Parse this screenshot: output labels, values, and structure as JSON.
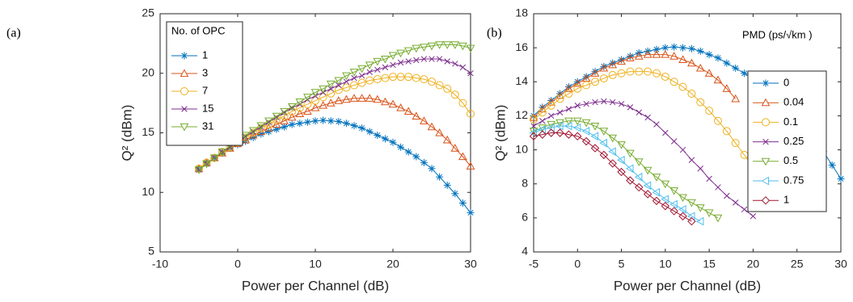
{
  "chart_data": [
    {
      "type": "line",
      "panel_label": "(a)",
      "xlabel": "Power per Channel (dB)",
      "ylabel": "Q² (dBm)",
      "legend_title": "No. of OPC",
      "xlim": [
        -10,
        30
      ],
      "ylim": [
        5,
        25
      ],
      "xticks": [
        -10,
        0,
        10,
        20,
        30
      ],
      "yticks": [
        5,
        10,
        15,
        20,
        25
      ],
      "series": [
        {
          "name": "1",
          "color": "#0072bd",
          "marker": "asterisk",
          "x": [
            -5,
            -4,
            -3,
            -2,
            -1,
            0,
            1,
            2,
            3,
            4,
            5,
            6,
            7,
            8,
            9,
            10,
            11,
            12,
            13,
            14,
            15,
            16,
            17,
            18,
            19,
            20,
            21,
            22,
            23,
            24,
            25,
            26,
            27,
            28,
            29,
            30
          ],
          "values": [
            12.0,
            12.5,
            12.9,
            13.3,
            13.7,
            14.0,
            14.3,
            14.6,
            14.9,
            15.1,
            15.3,
            15.5,
            15.7,
            15.8,
            15.9,
            16.0,
            16.05,
            16.0,
            15.95,
            15.8,
            15.6,
            15.4,
            15.1,
            14.8,
            14.5,
            14.2,
            13.8,
            13.4,
            13.0,
            12.5,
            12.0,
            11.3,
            10.6,
            9.9,
            9.1,
            8.3
          ]
        },
        {
          "name": "3",
          "color": "#d95319",
          "marker": "triangle",
          "x": [
            -5,
            -4,
            -3,
            -2,
            -1,
            0,
            1,
            2,
            3,
            4,
            5,
            6,
            7,
            8,
            9,
            10,
            11,
            12,
            13,
            14,
            15,
            16,
            17,
            18,
            19,
            20,
            21,
            22,
            23,
            24,
            25,
            26,
            27,
            28,
            29,
            30
          ],
          "values": [
            12.0,
            12.5,
            12.9,
            13.3,
            13.7,
            14.1,
            14.4,
            14.8,
            15.1,
            15.4,
            15.7,
            16.0,
            16.3,
            16.6,
            16.8,
            17.1,
            17.3,
            17.5,
            17.7,
            17.8,
            17.9,
            17.9,
            17.9,
            17.8,
            17.6,
            17.4,
            17.1,
            16.8,
            16.4,
            16.0,
            15.5,
            15.0,
            14.4,
            13.7,
            13.0,
            12.2
          ]
        },
        {
          "name": "7",
          "color": "#edb120",
          "marker": "circle",
          "x": [
            -5,
            -4,
            -3,
            -2,
            -1,
            0,
            1,
            2,
            3,
            4,
            5,
            6,
            7,
            8,
            9,
            10,
            11,
            12,
            13,
            14,
            15,
            16,
            17,
            18,
            19,
            20,
            21,
            22,
            23,
            24,
            25,
            26,
            27,
            28,
            29,
            30
          ],
          "values": [
            12.0,
            12.5,
            12.9,
            13.4,
            13.8,
            14.2,
            14.6,
            15.0,
            15.4,
            15.7,
            16.1,
            16.4,
            16.8,
            17.1,
            17.4,
            17.7,
            18.0,
            18.3,
            18.6,
            18.8,
            19.0,
            19.2,
            19.4,
            19.5,
            19.6,
            19.7,
            19.7,
            19.7,
            19.6,
            19.5,
            19.3,
            19.0,
            18.7,
            18.2,
            17.5,
            16.6
          ]
        },
        {
          "name": "15",
          "color": "#7e2f8e",
          "marker": "cross",
          "x": [
            -5,
            -4,
            -3,
            -2,
            -1,
            0,
            1,
            2,
            3,
            4,
            5,
            6,
            7,
            8,
            9,
            10,
            11,
            12,
            13,
            14,
            15,
            16,
            17,
            18,
            19,
            20,
            21,
            22,
            23,
            24,
            25,
            26,
            27,
            28,
            29,
            30
          ],
          "values": [
            11.9,
            12.4,
            12.9,
            13.4,
            13.8,
            14.3,
            14.7,
            15.1,
            15.5,
            15.9,
            16.3,
            16.7,
            17.1,
            17.4,
            17.8,
            18.1,
            18.4,
            18.7,
            19.0,
            19.3,
            19.6,
            19.8,
            20.1,
            20.3,
            20.5,
            20.7,
            20.9,
            21.0,
            21.1,
            21.2,
            21.2,
            21.2,
            21.0,
            20.8,
            20.5,
            20.0
          ]
        },
        {
          "name": "31",
          "color": "#77ac30",
          "marker": "triangle-down",
          "x": [
            -5,
            -4,
            -3,
            -2,
            -1,
            0,
            1,
            2,
            3,
            4,
            5,
            6,
            7,
            8,
            9,
            10,
            11,
            12,
            13,
            14,
            15,
            16,
            17,
            18,
            19,
            20,
            21,
            22,
            23,
            24,
            25,
            26,
            27,
            28,
            29,
            30
          ],
          "values": [
            11.9,
            12.4,
            12.9,
            13.4,
            13.9,
            14.3,
            14.8,
            15.2,
            15.6,
            16.0,
            16.4,
            16.8,
            17.2,
            17.6,
            18.0,
            18.4,
            18.7,
            19.1,
            19.4,
            19.8,
            20.1,
            20.4,
            20.7,
            21.0,
            21.2,
            21.5,
            21.7,
            21.9,
            22.1,
            22.2,
            22.3,
            22.4,
            22.4,
            22.4,
            22.3,
            22.1
          ]
        }
      ]
    },
    {
      "type": "line",
      "panel_label": "(b)",
      "xlabel": "Power per Channel (dB)",
      "ylabel": "Q² (dBm)",
      "legend_title": "PMD (ps/√km )",
      "xlim": [
        -5,
        30
      ],
      "ylim": [
        4,
        18
      ],
      "xticks": [
        -5,
        0,
        5,
        10,
        15,
        20,
        25,
        30
      ],
      "yticks": [
        4,
        6,
        8,
        10,
        12,
        14,
        16,
        18
      ],
      "series": [
        {
          "name": "0",
          "color": "#0072bd",
          "marker": "asterisk",
          "x": [
            -5,
            -4,
            -3,
            -2,
            -1,
            0,
            1,
            2,
            3,
            4,
            5,
            6,
            7,
            8,
            9,
            10,
            11,
            12,
            13,
            14,
            15,
            16,
            17,
            18,
            19,
            20,
            21,
            22,
            23,
            24,
            25,
            26,
            27,
            28,
            29,
            30
          ],
          "values": [
            12.0,
            12.5,
            12.9,
            13.3,
            13.7,
            14.0,
            14.3,
            14.6,
            14.9,
            15.1,
            15.3,
            15.5,
            15.7,
            15.8,
            15.9,
            16.0,
            16.05,
            16.0,
            15.95,
            15.8,
            15.6,
            15.4,
            15.1,
            14.8,
            14.5,
            14.2,
            13.8,
            13.4,
            13.0,
            12.5,
            12.0,
            11.3,
            10.6,
            9.9,
            9.1,
            8.3
          ]
        },
        {
          "name": "0.04",
          "color": "#d95319",
          "marker": "triangle",
          "x": [
            -5,
            -4,
            -3,
            -2,
            -1,
            0,
            1,
            2,
            3,
            4,
            5,
            6,
            7,
            8,
            9,
            10,
            11,
            12,
            13,
            14,
            15,
            16,
            17,
            18
          ],
          "values": [
            11.9,
            12.4,
            12.8,
            13.2,
            13.6,
            13.9,
            14.2,
            14.5,
            14.8,
            15.0,
            15.2,
            15.4,
            15.5,
            15.6,
            15.6,
            15.6,
            15.5,
            15.3,
            15.1,
            14.8,
            14.5,
            14.1,
            13.6,
            13.0
          ]
        },
        {
          "name": "0.1",
          "color": "#edb120",
          "marker": "circle",
          "x": [
            -5,
            -4,
            -3,
            -2,
            -1,
            0,
            1,
            2,
            3,
            4,
            5,
            6,
            7,
            8,
            9,
            10,
            11,
            12,
            13,
            14,
            15,
            16,
            17,
            18,
            19,
            20,
            21,
            22,
            23
          ],
          "values": [
            11.8,
            12.2,
            12.6,
            13.0,
            13.3,
            13.6,
            13.8,
            14.0,
            14.2,
            14.4,
            14.5,
            14.6,
            14.6,
            14.6,
            14.5,
            14.3,
            14.0,
            13.7,
            13.3,
            12.8,
            12.3,
            11.7,
            11.1,
            10.4,
            9.7,
            9.0,
            8.3,
            7.5,
            6.7
          ]
        },
        {
          "name": "0.25",
          "color": "#7e2f8e",
          "marker": "cross",
          "x": [
            -5,
            -4,
            -3,
            -2,
            -1,
            0,
            1,
            2,
            3,
            4,
            5,
            6,
            7,
            8,
            9,
            10,
            11,
            12,
            13,
            14,
            15,
            16,
            17,
            18,
            19,
            20
          ],
          "values": [
            11.4,
            11.7,
            12.0,
            12.2,
            12.4,
            12.6,
            12.7,
            12.8,
            12.85,
            12.8,
            12.7,
            12.5,
            12.2,
            11.9,
            11.5,
            11.0,
            10.5,
            10.0,
            9.4,
            8.9,
            8.3,
            7.8,
            7.3,
            6.9,
            6.5,
            6.1
          ]
        },
        {
          "name": "0.5",
          "color": "#77ac30",
          "marker": "triangle-down",
          "x": [
            -5,
            -4,
            -3,
            -2,
            -1,
            0,
            1,
            2,
            3,
            4,
            5,
            6,
            7,
            8,
            9,
            10,
            11,
            12,
            13,
            14,
            15,
            16
          ],
          "values": [
            11.1,
            11.3,
            11.5,
            11.6,
            11.7,
            11.7,
            11.6,
            11.4,
            11.1,
            10.7,
            10.3,
            9.8,
            9.3,
            8.8,
            8.4,
            8.0,
            7.6,
            7.2,
            6.9,
            6.6,
            6.3,
            6.0
          ]
        },
        {
          "name": "0.75",
          "color": "#4dbeee",
          "marker": "triangle-left",
          "x": [
            -5,
            -4,
            -3,
            -2,
            -1,
            0,
            1,
            2,
            3,
            4,
            5,
            6,
            7,
            8,
            9,
            10,
            11,
            12,
            13,
            14
          ],
          "values": [
            11.0,
            11.2,
            11.3,
            11.4,
            11.4,
            11.3,
            11.1,
            10.8,
            10.4,
            9.9,
            9.4,
            8.9,
            8.4,
            7.9,
            7.5,
            7.1,
            6.8,
            6.5,
            6.1,
            5.8
          ]
        },
        {
          "name": "1",
          "color": "#a2142f",
          "marker": "diamond",
          "x": [
            -5,
            -4,
            -3,
            -2,
            -1,
            0,
            1,
            2,
            3,
            4,
            5,
            6,
            7,
            8,
            9,
            10,
            11,
            12,
            13
          ],
          "values": [
            10.8,
            10.9,
            11.0,
            11.0,
            10.9,
            10.8,
            10.5,
            10.1,
            9.7,
            9.2,
            8.7,
            8.2,
            7.8,
            7.4,
            7.0,
            6.7,
            6.4,
            6.1,
            5.8
          ]
        }
      ]
    }
  ]
}
